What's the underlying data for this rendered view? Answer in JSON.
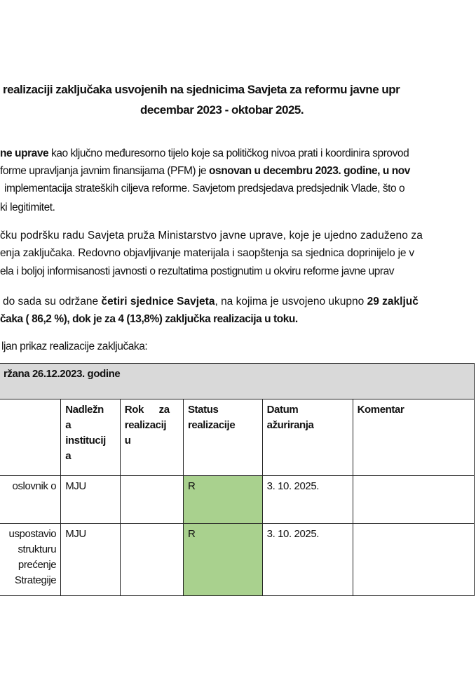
{
  "title": {
    "line1": "realizaciji zaključaka usvojenih na sjednicima Savjeta za reformu javne upr",
    "line2": "decembar 2023 - oktobar 2025."
  },
  "paragraph1": {
    "l1_bold": "ne uprave",
    "l1_rest": " kao ključno međuresorno tijelo koje sa političkog nivoa prati i koordinira sprovod",
    "l2_a": "forme upravljanja javnim finansijama (PFM) je ",
    "l2_bold": "osnovan u decembru 2023. godine, u nov",
    "l3": "implementacija strateških ciljeva reforme. Savjetom predsjedava predsjednik Vlade, što o",
    "l4": "ki legitimitet."
  },
  "paragraph2": {
    "l1": "čku podršku radu Savjeta pruža Ministarstvo javne uprave, koje je ujedno zaduženo za",
    "l2": "enja zaključaka. Redovno objavljivanje materijala i saopštenja sa sjednica doprinijelo je v",
    "l3": "ela i boljoj informisanosti javnosti o rezultatima postignutim u okviru reforme javne uprav"
  },
  "paragraph3": {
    "l1_a": "do sada su održane ",
    "l1_bold": "četiri sjednice Savjeta",
    "l1_b": ", na kojima je usvojeno ukupno ",
    "l1_bold2": "29 zaključ",
    "l2_bold": "čaka ( 86,2 %), dok je za 4 (13,8%) zaključka realizacija u toku."
  },
  "paragraph4": "ljan prikaz realizacije zaključaka:",
  "table": {
    "session_header": "ržana 26.12.2023. godine",
    "columns": [
      "",
      "Nadležn a institucij a",
      "Rok za realizacij u",
      "Status realizacije",
      "Datum ažuriranja",
      "Komentar"
    ],
    "col_lines": {
      "inst": [
        "Nadležn",
        "a",
        "institucij",
        "a"
      ],
      "rok": [
        "Rok za",
        "realizacij",
        "u"
      ],
      "status": [
        "Status",
        "realizacije"
      ],
      "datum": [
        "Datum",
        "ažuriranja"
      ],
      "komentar": [
        "Komentar"
      ]
    },
    "rows": [
      {
        "text_lines": [
          "oslovnik o"
        ],
        "institution": "MJU",
        "deadline": "",
        "status": "R",
        "date": "3. 10. 2025.",
        "comment": ""
      },
      {
        "text_lines": [
          "uspostavio",
          "strukturu",
          "prećenje",
          "Strategije"
        ],
        "institution": "MJU",
        "deadline": "",
        "status": "R",
        "date": "3. 10. 2025.",
        "comment": ""
      }
    ],
    "status_color": "#a9d18e",
    "header_bg": "#d9d9d9"
  }
}
